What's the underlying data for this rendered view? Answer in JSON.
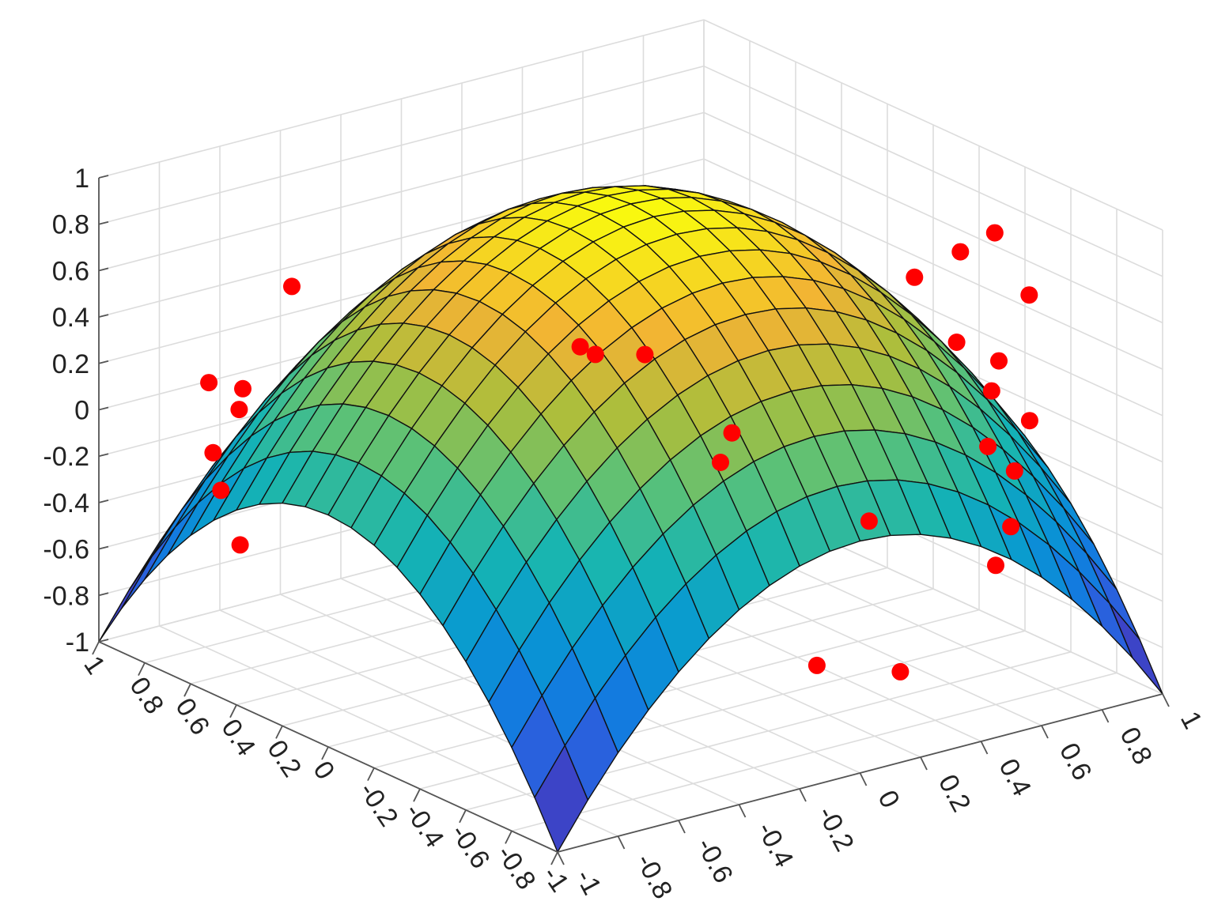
{
  "chart_data": {
    "type": "surface",
    "surface": {
      "function": "z = 1 - x^2 - y^2",
      "colormap": "parula",
      "grid_divisions": 20,
      "edge_color": "#111111"
    },
    "axes": {
      "xlim": [
        -1,
        1
      ],
      "ylim": [
        -1,
        1
      ],
      "zlim": [
        -1,
        1
      ],
      "x_tick_labels": [
        "-1",
        "-0.8",
        "-0.6",
        "-0.4",
        "-0.2",
        "0",
        "0.2",
        "0.4",
        "0.6",
        "0.8",
        "1"
      ],
      "y_tick_labels": [
        "-1",
        "-0.8",
        "-0.6",
        "-0.4",
        "-0.2",
        "0",
        "0.2",
        "0.4",
        "0.6",
        "0.8",
        "1"
      ],
      "z_tick_labels": [
        "-1",
        "-0.8",
        "-0.6",
        "-0.4",
        "-0.2",
        "0",
        "0.2",
        "0.4",
        "0.6",
        "0.8",
        "1"
      ],
      "grid": true,
      "box": false
    },
    "scatter": {
      "color": "#ff0000",
      "points": [
        {
          "x": -0.95,
          "y": 0.45,
          "z": -0.35
        },
        {
          "x": -0.9,
          "y": 0.6,
          "z": -0.2
        },
        {
          "x": -0.85,
          "y": 0.7,
          "z": -0.1
        },
        {
          "x": -0.75,
          "y": 0.85,
          "z": 0.1
        },
        {
          "x": -0.65,
          "y": 0.85,
          "z": -0.05
        },
        {
          "x": -0.6,
          "y": 0.9,
          "z": 0.0
        },
        {
          "x": -0.4,
          "y": 0.95,
          "z": 0.35
        },
        {
          "x": 0.25,
          "y": 0.55,
          "z": 0.05
        },
        {
          "x": 0.3,
          "y": 0.55,
          "z": 0.0
        },
        {
          "x": 0.35,
          "y": 0.4,
          "z": 0.05
        },
        {
          "x": 0.6,
          "y": 0.35,
          "z": -0.35
        },
        {
          "x": 0.6,
          "y": 0.4,
          "z": -0.5
        },
        {
          "x": 0.9,
          "y": -0.05,
          "z": 0.4
        },
        {
          "x": 0.9,
          "y": -0.25,
          "z": 0.6
        },
        {
          "x": 0.9,
          "y": -0.4,
          "z": 0.75
        },
        {
          "x": 0.9,
          "y": -0.55,
          "z": 0.55
        },
        {
          "x": 0.85,
          "y": -0.3,
          "z": 0.25
        },
        {
          "x": 0.8,
          "y": -0.55,
          "z": 0.3
        },
        {
          "x": 0.7,
          "y": -0.65,
          "z": 0.25
        },
        {
          "x": 0.65,
          "y": -0.7,
          "z": 0.05
        },
        {
          "x": 0.75,
          "y": -0.75,
          "z": 0.15
        },
        {
          "x": 0.7,
          "y": -0.75,
          "z": -0.05
        },
        {
          "x": 0.65,
          "y": -0.8,
          "z": -0.25
        },
        {
          "x": 0.6,
          "y": -0.8,
          "z": -0.4
        },
        {
          "x": 0.75,
          "y": -0.05,
          "z": -0.6
        },
        {
          "x": 0.35,
          "y": -0.35,
          "z": -0.95
        },
        {
          "x": 0.55,
          "y": -0.45,
          "z": -1.0
        }
      ]
    }
  }
}
